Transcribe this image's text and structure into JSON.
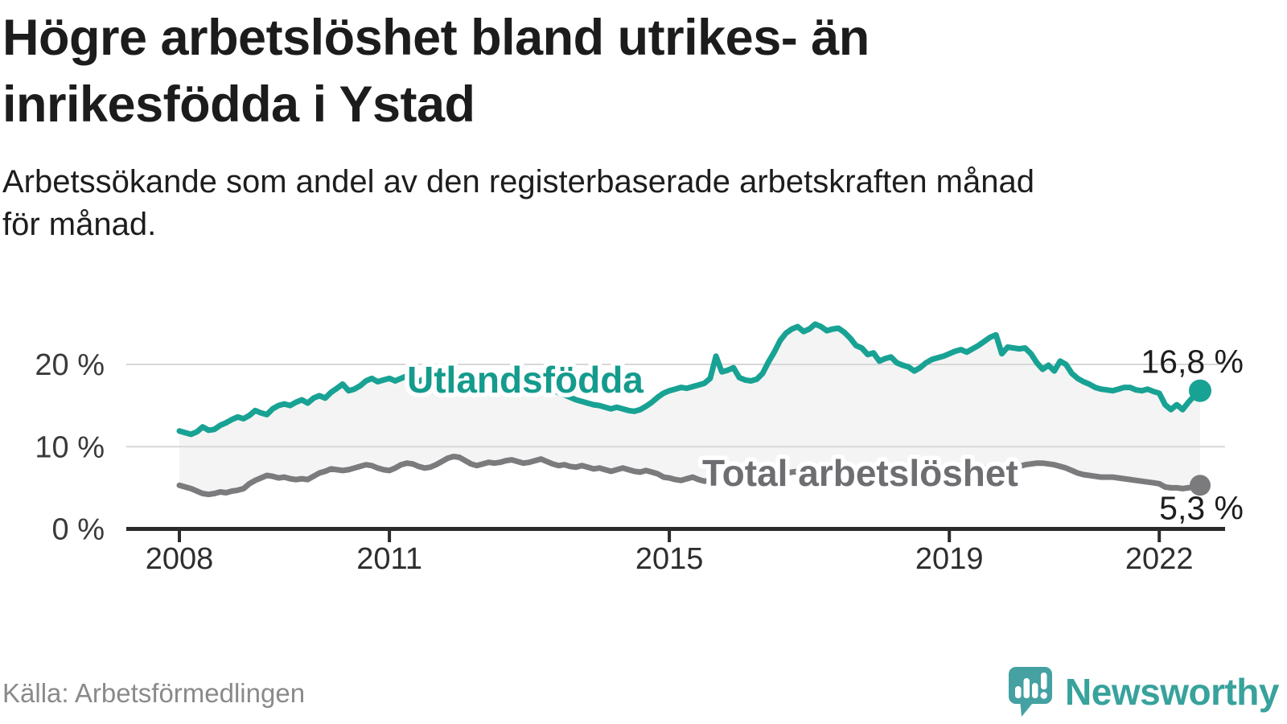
{
  "header": {
    "title_lines": [
      "Högre arbetslöshet bland utrikes- än",
      "inrikesfödda i Ystad"
    ],
    "subtitle_lines": [
      "Arbetssökande som andel av den registerbaserade arbetskraften månad",
      "för månad."
    ]
  },
  "footer": {
    "source": "Källa: Arbetsförmedlingen",
    "brand": "Newsworthy",
    "brand_color": "#38a29c",
    "brand_icon_color": "#45a1a2"
  },
  "chart_data": {
    "type": "line",
    "title": "Högre arbetslöshet bland utrikes- än inrikesfödda i Ystad",
    "subtitle": "Arbetssökande som andel av den registerbaserade arbetskraften månad för månad.",
    "unit": "%",
    "x_monthly_from": "2008-01",
    "x_monthly_to": "2022-08",
    "grid": true,
    "fill_between_color": "#f4f4f4",
    "axis_color": "#2b2b2b",
    "grid_color": "#d8d8d8",
    "y_axis": {
      "ticks": [
        0,
        10,
        20
      ],
      "tick_labels": [
        "0 %",
        "10 %",
        "20 %"
      ],
      "range": [
        0,
        27
      ]
    },
    "x_axis": {
      "tick_labels": [
        "2008",
        "2011",
        "2015",
        "2019",
        "2022"
      ],
      "tick_month_index": [
        0,
        36,
        84,
        132,
        168
      ]
    },
    "series": [
      {
        "name": "Utlandsfödda",
        "color": "#18a294",
        "label_color": "#149b8d",
        "end_label": "16,8 %",
        "end_value": 16.8,
        "values": [
          11.9,
          11.7,
          11.5,
          11.8,
          12.4,
          12.0,
          12.1,
          12.6,
          12.9,
          13.3,
          13.6,
          13.4,
          13.8,
          14.4,
          14.1,
          13.9,
          14.6,
          15.0,
          15.2,
          15.0,
          15.4,
          15.7,
          15.3,
          15.9,
          16.2,
          15.9,
          16.6,
          17.1,
          17.6,
          16.8,
          17.0,
          17.4,
          18.0,
          18.3,
          17.9,
          18.1,
          18.3,
          18.0,
          18.3,
          18.6,
          18.2,
          17.9,
          18.3,
          18.5,
          18.4,
          18.6,
          18.4,
          18.5,
          18.6,
          18.4,
          18.6,
          18.5,
          18.3,
          18.4,
          18.6,
          18.5,
          18.3,
          18.4,
          18.5,
          18.3,
          18.1,
          17.8,
          17.5,
          17.2,
          16.9,
          16.6,
          16.3,
          16.0,
          15.7,
          15.5,
          15.3,
          15.1,
          15.0,
          14.8,
          14.6,
          14.8,
          14.6,
          14.4,
          14.3,
          14.5,
          14.9,
          15.4,
          16.0,
          16.5,
          16.8,
          17.0,
          17.2,
          17.1,
          17.3,
          17.5,
          17.7,
          18.3,
          21.0,
          19.1,
          19.3,
          19.6,
          18.4,
          18.1,
          18.0,
          18.2,
          18.9,
          20.3,
          21.5,
          22.9,
          23.8,
          24.3,
          24.6,
          24.0,
          24.3,
          24.9,
          24.6,
          24.1,
          24.3,
          24.4,
          23.9,
          23.2,
          22.3,
          22.0,
          21.2,
          21.4,
          20.4,
          20.7,
          20.9,
          20.2,
          19.9,
          19.7,
          19.2,
          19.6,
          20.2,
          20.6,
          20.8,
          21.0,
          21.3,
          21.6,
          21.8,
          21.5,
          21.9,
          22.3,
          22.8,
          23.3,
          23.6,
          21.3,
          22.1,
          22.0,
          21.9,
          22.0,
          21.3,
          20.2,
          19.4,
          19.9,
          19.2,
          20.4,
          20.0,
          18.9,
          18.3,
          17.9,
          17.6,
          17.2,
          17.0,
          16.9,
          16.8,
          17.0,
          17.2,
          17.2,
          16.9,
          16.8,
          17.0,
          16.7,
          16.5,
          15.1,
          14.5,
          15.1,
          14.5,
          15.4,
          16.2,
          16.8
        ]
      },
      {
        "name": "Total arbetslöshet",
        "color": "#7b7b7e",
        "label_color": "#6e6e72",
        "end_label": "5,3 %",
        "end_value": 5.3,
        "values": [
          5.3,
          5.1,
          4.9,
          4.6,
          4.3,
          4.2,
          4.3,
          4.5,
          4.4,
          4.6,
          4.7,
          4.9,
          5.5,
          5.9,
          6.2,
          6.5,
          6.4,
          6.2,
          6.3,
          6.1,
          6.0,
          6.1,
          6.0,
          6.4,
          6.8,
          7.0,
          7.3,
          7.2,
          7.1,
          7.2,
          7.4,
          7.6,
          7.8,
          7.7,
          7.4,
          7.2,
          7.1,
          7.4,
          7.8,
          8.0,
          7.9,
          7.6,
          7.4,
          7.5,
          7.8,
          8.2,
          8.6,
          8.8,
          8.7,
          8.3,
          7.9,
          7.7,
          7.9,
          8.1,
          8.0,
          8.1,
          8.3,
          8.4,
          8.2,
          8.0,
          8.1,
          8.3,
          8.5,
          8.2,
          7.9,
          7.7,
          7.8,
          7.6,
          7.5,
          7.7,
          7.5,
          7.3,
          7.4,
          7.2,
          7.0,
          7.2,
          7.4,
          7.2,
          7.0,
          6.9,
          7.1,
          6.9,
          6.7,
          6.3,
          6.2,
          6.0,
          5.9,
          6.1,
          6.3,
          6.0,
          5.8,
          5.9,
          6.1,
          6.0,
          5.9,
          6.1,
          6.2,
          6.0,
          5.9,
          6.1,
          6.3,
          6.5,
          6.4,
          6.6,
          6.8,
          6.9,
          7.0,
          7.1,
          7.2,
          7.3,
          7.2,
          7.0,
          7.1,
          7.3,
          7.2,
          7.0,
          6.9,
          7.0,
          6.8,
          6.9,
          6.8,
          6.9,
          6.7,
          6.6,
          6.7,
          6.6,
          6.5,
          6.6,
          6.8,
          6.7,
          6.9,
          7.0,
          7.0,
          7.1,
          7.2,
          7.1,
          7.3,
          7.2,
          7.4,
          7.3,
          7.2,
          7.4,
          7.5,
          7.6,
          7.6,
          7.8,
          7.9,
          8.0,
          8.0,
          7.9,
          7.8,
          7.6,
          7.4,
          7.1,
          6.8,
          6.6,
          6.5,
          6.4,
          6.3,
          6.3,
          6.3,
          6.2,
          6.1,
          6.0,
          5.9,
          5.8,
          5.7,
          5.6,
          5.5,
          5.1,
          5.0,
          5.0,
          4.9,
          5.0,
          5.1,
          5.3
        ]
      }
    ]
  }
}
